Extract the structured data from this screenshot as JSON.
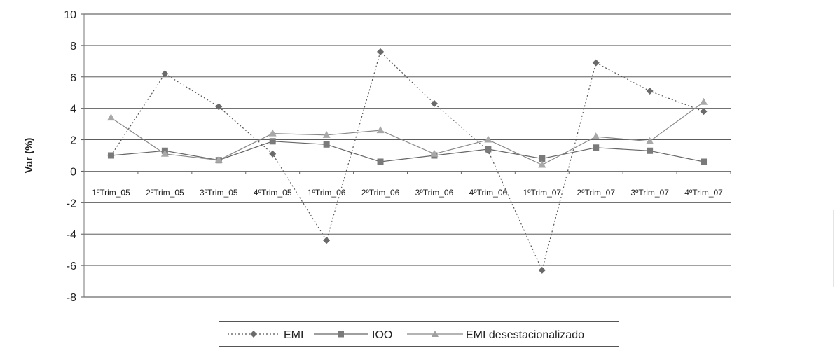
{
  "chart_data": {
    "type": "line",
    "title": "",
    "xlabel": "",
    "ylabel": "Var (%)",
    "ylim": [
      -8,
      10
    ],
    "yticks": [
      10,
      8,
      6,
      4,
      2,
      0,
      -2,
      -4,
      -6,
      -8
    ],
    "grid": true,
    "legend_position": "bottom",
    "categories": [
      "1ºTrim_05",
      "2ºTrim_05",
      "3ºTrim_05",
      "4ºTrim_05",
      "1ºTrim_06",
      "2ºTrim_06",
      "3ºTrim_06",
      "4ºTrim_06",
      "1ºTrim_07",
      "2ºTrim_07",
      "3ºTrim_07",
      "4ºTrim_07"
    ],
    "series": [
      {
        "name": "EMI",
        "marker": "diamond",
        "line_style": "dotted",
        "color": "#555555",
        "values": [
          1.0,
          6.2,
          4.1,
          1.1,
          -4.4,
          7.6,
          4.3,
          1.3,
          -6.3,
          6.9,
          5.1,
          3.8
        ]
      },
      {
        "name": "IOO",
        "marker": "square",
        "line_style": "solid",
        "color": "#666666",
        "values": [
          1.0,
          1.3,
          0.7,
          1.9,
          1.7,
          0.6,
          1.0,
          1.4,
          0.8,
          1.5,
          1.3,
          0.6
        ]
      },
      {
        "name": "EMI desestacionalizado",
        "marker": "triangle",
        "line_style": "solid",
        "color": "#888888",
        "values": [
          3.4,
          1.1,
          0.7,
          2.4,
          2.3,
          2.6,
          1.1,
          2.0,
          0.4,
          2.2,
          1.9,
          4.4
        ]
      }
    ]
  }
}
